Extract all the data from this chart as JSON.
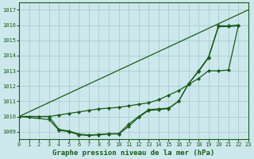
{
  "title": "Graphe pression niveau de la mer (hPa)",
  "bg_color": "#cce8ec",
  "grid_color": "#b8d8dc",
  "line_color": "#1a5c1a",
  "xlim": [
    0,
    23
  ],
  "ylim": [
    1008.5,
    1017.5
  ],
  "ytick_vals": [
    1009,
    1010,
    1011,
    1012,
    1013,
    1014,
    1015,
    1016,
    1017
  ],
  "xtick_vals": [
    0,
    1,
    2,
    3,
    4,
    5,
    6,
    7,
    8,
    9,
    10,
    11,
    12,
    13,
    14,
    15,
    16,
    17,
    18,
    19,
    20,
    21,
    22,
    23
  ],
  "series1_x": [
    0,
    23
  ],
  "series1_y": [
    1010,
    1017
  ],
  "series2_x": [
    0,
    1,
    2,
    3,
    4,
    5,
    6,
    7,
    8,
    9,
    10,
    11,
    12,
    13,
    14,
    15,
    16,
    17,
    18,
    19,
    20,
    21,
    22
  ],
  "series2_y": [
    1010,
    1010,
    1010,
    1010,
    1010.1,
    1010.2,
    1010.3,
    1010.4,
    1010.5,
    1010.55,
    1010.6,
    1010.7,
    1010.8,
    1010.9,
    1011.1,
    1011.4,
    1011.7,
    1012.1,
    1012.5,
    1013.0,
    1013.0,
    1013.05,
    1016.0
  ],
  "series3_x": [
    0,
    3,
    4,
    5,
    6,
    7,
    8,
    9,
    10,
    11,
    12,
    13,
    14,
    15,
    16,
    17,
    18,
    19,
    20,
    21,
    22
  ],
  "series3_y": [
    1010,
    1010,
    1009.15,
    1009.05,
    1008.85,
    1008.78,
    1008.82,
    1008.87,
    1008.88,
    1009.5,
    1010.0,
    1010.45,
    1010.5,
    1010.55,
    1011.0,
    1012.15,
    1013.0,
    1013.9,
    1015.95,
    1015.95,
    1016.0
  ],
  "series4_x": [
    0,
    3,
    4,
    5,
    6,
    7,
    8,
    9,
    10,
    11,
    12,
    13,
    14,
    15,
    16,
    17,
    18,
    19,
    20,
    21,
    22
  ],
  "series4_y": [
    1010,
    1009.8,
    1009.1,
    1009.0,
    1008.8,
    1008.75,
    1008.8,
    1008.85,
    1008.85,
    1009.35,
    1009.95,
    1010.4,
    1010.45,
    1010.52,
    1011.0,
    1012.15,
    1012.95,
    1013.85,
    1015.9,
    1015.9,
    1015.95
  ]
}
